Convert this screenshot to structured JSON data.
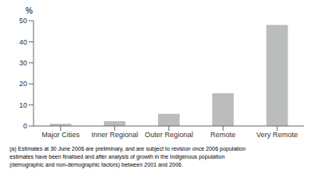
{
  "chart_data": {
    "type": "bar",
    "categories": [
      "Major Cities",
      "Inner Regional",
      "Outer Regional",
      "Remote",
      "Very Remote"
    ],
    "values": [
      1.0,
      2.3,
      5.8,
      15.5,
      48.0
    ],
    "color": "#bbbcbc",
    "ylabel": "%",
    "ylim": [
      0,
      50
    ],
    "yticks": [
      0,
      10,
      20,
      30,
      40,
      50
    ],
    "grid": false,
    "annotations": [
      "(a) Estimates at 30 June 2006 are preliminary, and are subject to revision once 2006 population",
      "estimates have been finalised and after analysis of growth in the Indigenous population",
      "(demographic and non-demographic factors) between 2001 and 2006."
    ]
  }
}
